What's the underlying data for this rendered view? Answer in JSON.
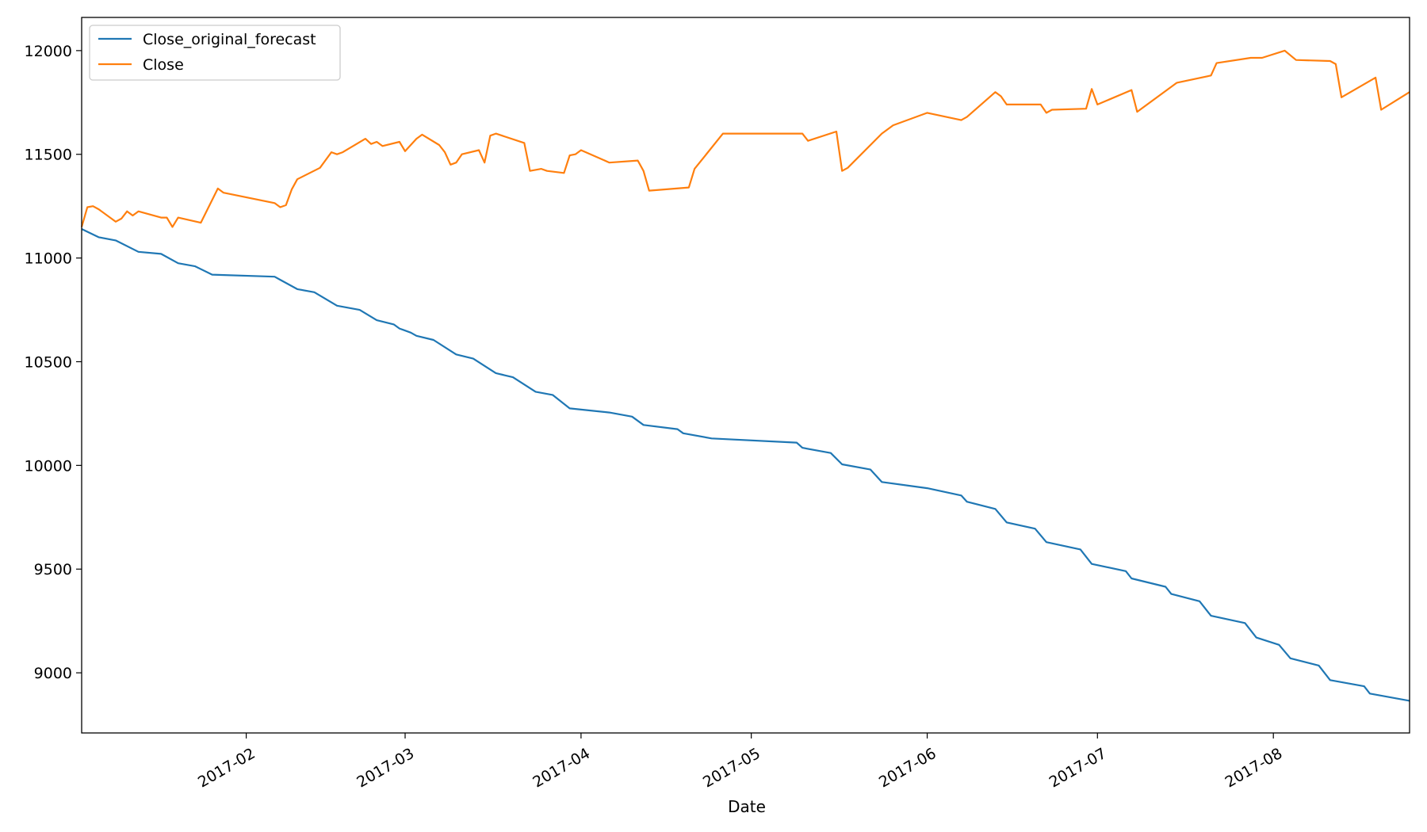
{
  "chart_data": {
    "type": "line",
    "xlabel": "Date",
    "ylabel": "",
    "title": "",
    "xlim": [
      "2017-01-03",
      "2017-08-25"
    ],
    "ylim": [
      8710,
      12160
    ],
    "grid": false,
    "legend_position": "upper-left",
    "x_ticks": [
      {
        "date": "2017-02-01",
        "label": "2017-02"
      },
      {
        "date": "2017-03-01",
        "label": "2017-03"
      },
      {
        "date": "2017-04-01",
        "label": "2017-04"
      },
      {
        "date": "2017-05-01",
        "label": "2017-05"
      },
      {
        "date": "2017-06-01",
        "label": "2017-06"
      },
      {
        "date": "2017-07-01",
        "label": "2017-07"
      },
      {
        "date": "2017-08-01",
        "label": "2017-08"
      }
    ],
    "y_ticks": [
      9000,
      9500,
      10000,
      10500,
      11000,
      11500,
      12000
    ],
    "series": [
      {
        "name": "Close_original_forecast",
        "color": "#1f77b4",
        "points": [
          [
            "2017-01-03",
            11140
          ],
          [
            "2017-01-06",
            11100
          ],
          [
            "2017-01-09",
            11085
          ],
          [
            "2017-01-13",
            11030
          ],
          [
            "2017-01-17",
            11020
          ],
          [
            "2017-01-20",
            10975
          ],
          [
            "2017-01-23",
            10960
          ],
          [
            "2017-01-26",
            10920
          ],
          [
            "2017-02-06",
            10910
          ],
          [
            "2017-02-07",
            10895
          ],
          [
            "2017-02-10",
            10850
          ],
          [
            "2017-02-13",
            10835
          ],
          [
            "2017-02-17",
            10770
          ],
          [
            "2017-02-21",
            10750
          ],
          [
            "2017-02-24",
            10700
          ],
          [
            "2017-02-27",
            10680
          ],
          [
            "2017-02-28",
            10660
          ],
          [
            "2017-03-02",
            10640
          ],
          [
            "2017-03-03",
            10625
          ],
          [
            "2017-03-06",
            10605
          ],
          [
            "2017-03-10",
            10535
          ],
          [
            "2017-03-13",
            10515
          ],
          [
            "2017-03-17",
            10445
          ],
          [
            "2017-03-20",
            10425
          ],
          [
            "2017-03-24",
            10355
          ],
          [
            "2017-03-27",
            10340
          ],
          [
            "2017-03-30",
            10275
          ],
          [
            "2017-04-06",
            10255
          ],
          [
            "2017-04-10",
            10235
          ],
          [
            "2017-04-12",
            10195
          ],
          [
            "2017-04-18",
            10175
          ],
          [
            "2017-04-19",
            10155
          ],
          [
            "2017-04-24",
            10130
          ],
          [
            "2017-05-09",
            10110
          ],
          [
            "2017-05-10",
            10085
          ],
          [
            "2017-05-15",
            10060
          ],
          [
            "2017-05-17",
            10005
          ],
          [
            "2017-05-22",
            9980
          ],
          [
            "2017-05-24",
            9920
          ],
          [
            "2017-06-01",
            9890
          ],
          [
            "2017-06-07",
            9855
          ],
          [
            "2017-06-08",
            9825
          ],
          [
            "2017-06-13",
            9790
          ],
          [
            "2017-06-15",
            9725
          ],
          [
            "2017-06-20",
            9695
          ],
          [
            "2017-06-22",
            9630
          ],
          [
            "2017-06-28",
            9595
          ],
          [
            "2017-06-30",
            9525
          ],
          [
            "2017-07-06",
            9490
          ],
          [
            "2017-07-07",
            9455
          ],
          [
            "2017-07-13",
            9415
          ],
          [
            "2017-07-14",
            9380
          ],
          [
            "2017-07-19",
            9345
          ],
          [
            "2017-07-21",
            9275
          ],
          [
            "2017-07-27",
            9240
          ],
          [
            "2017-07-29",
            9170
          ],
          [
            "2017-08-02",
            9135
          ],
          [
            "2017-08-04",
            9070
          ],
          [
            "2017-08-09",
            9035
          ],
          [
            "2017-08-11",
            8965
          ],
          [
            "2017-08-17",
            8935
          ],
          [
            "2017-08-18",
            8900
          ],
          [
            "2017-08-25",
            8865
          ]
        ]
      },
      {
        "name": "Close",
        "color": "#ff7f0e",
        "points": [
          [
            "2017-01-03",
            11150
          ],
          [
            "2017-01-04",
            11245
          ],
          [
            "2017-01-05",
            11250
          ],
          [
            "2017-01-06",
            11235
          ],
          [
            "2017-01-09",
            11175
          ],
          [
            "2017-01-10",
            11190
          ],
          [
            "2017-01-11",
            11225
          ],
          [
            "2017-01-12",
            11205
          ],
          [
            "2017-01-13",
            11225
          ],
          [
            "2017-01-17",
            11195
          ],
          [
            "2017-01-18",
            11195
          ],
          [
            "2017-01-19",
            11150
          ],
          [
            "2017-01-20",
            11195
          ],
          [
            "2017-01-24",
            11170
          ],
          [
            "2017-01-27",
            11335
          ],
          [
            "2017-01-28",
            11315
          ],
          [
            "2017-02-06",
            11265
          ],
          [
            "2017-02-07",
            11245
          ],
          [
            "2017-02-08",
            11255
          ],
          [
            "2017-02-09",
            11330
          ],
          [
            "2017-02-10",
            11380
          ],
          [
            "2017-02-14",
            11435
          ],
          [
            "2017-02-16",
            11510
          ],
          [
            "2017-02-17",
            11500
          ],
          [
            "2017-02-18",
            11510
          ],
          [
            "2017-02-22",
            11575
          ],
          [
            "2017-02-23",
            11550
          ],
          [
            "2017-02-24",
            11560
          ],
          [
            "2017-02-25",
            11540
          ],
          [
            "2017-02-28",
            11560
          ],
          [
            "2017-03-01",
            11515
          ],
          [
            "2017-03-03",
            11575
          ],
          [
            "2017-03-04",
            11595
          ],
          [
            "2017-03-07",
            11545
          ],
          [
            "2017-03-08",
            11510
          ],
          [
            "2017-03-09",
            11450
          ],
          [
            "2017-03-10",
            11460
          ],
          [
            "2017-03-11",
            11500
          ],
          [
            "2017-03-14",
            11520
          ],
          [
            "2017-03-15",
            11460
          ],
          [
            "2017-03-16",
            11590
          ],
          [
            "2017-03-17",
            11600
          ],
          [
            "2017-03-22",
            11555
          ],
          [
            "2017-03-23",
            11420
          ],
          [
            "2017-03-25",
            11430
          ],
          [
            "2017-03-26",
            11420
          ],
          [
            "2017-03-29",
            11410
          ],
          [
            "2017-03-30",
            11495
          ],
          [
            "2017-03-31",
            11500
          ],
          [
            "2017-04-01",
            11520
          ],
          [
            "2017-04-06",
            11460
          ],
          [
            "2017-04-11",
            11470
          ],
          [
            "2017-04-12",
            11420
          ],
          [
            "2017-04-13",
            11325
          ],
          [
            "2017-04-20",
            11340
          ],
          [
            "2017-04-21",
            11430
          ],
          [
            "2017-04-26",
            11600
          ],
          [
            "2017-05-10",
            11600
          ],
          [
            "2017-05-11",
            11565
          ],
          [
            "2017-05-16",
            11610
          ],
          [
            "2017-05-17",
            11420
          ],
          [
            "2017-05-18",
            11435
          ],
          [
            "2017-05-24",
            11600
          ],
          [
            "2017-05-26",
            11640
          ],
          [
            "2017-06-01",
            11700
          ],
          [
            "2017-06-07",
            11665
          ],
          [
            "2017-06-08",
            11680
          ],
          [
            "2017-06-13",
            11800
          ],
          [
            "2017-06-14",
            11780
          ],
          [
            "2017-06-15",
            11740
          ],
          [
            "2017-06-21",
            11740
          ],
          [
            "2017-06-22",
            11700
          ],
          [
            "2017-06-23",
            11715
          ],
          [
            "2017-06-29",
            11720
          ],
          [
            "2017-06-30",
            11815
          ],
          [
            "2017-07-01",
            11740
          ],
          [
            "2017-07-07",
            11810
          ],
          [
            "2017-07-08",
            11705
          ],
          [
            "2017-07-15",
            11845
          ],
          [
            "2017-07-21",
            11880
          ],
          [
            "2017-07-22",
            11940
          ],
          [
            "2017-07-28",
            11965
          ],
          [
            "2017-07-30",
            11965
          ],
          [
            "2017-08-03",
            12000
          ],
          [
            "2017-08-05",
            11955
          ],
          [
            "2017-08-11",
            11950
          ],
          [
            "2017-08-12",
            11935
          ],
          [
            "2017-08-13",
            11775
          ],
          [
            "2017-08-19",
            11870
          ],
          [
            "2017-08-20",
            11715
          ],
          [
            "2017-08-25",
            11800
          ]
        ]
      }
    ]
  }
}
